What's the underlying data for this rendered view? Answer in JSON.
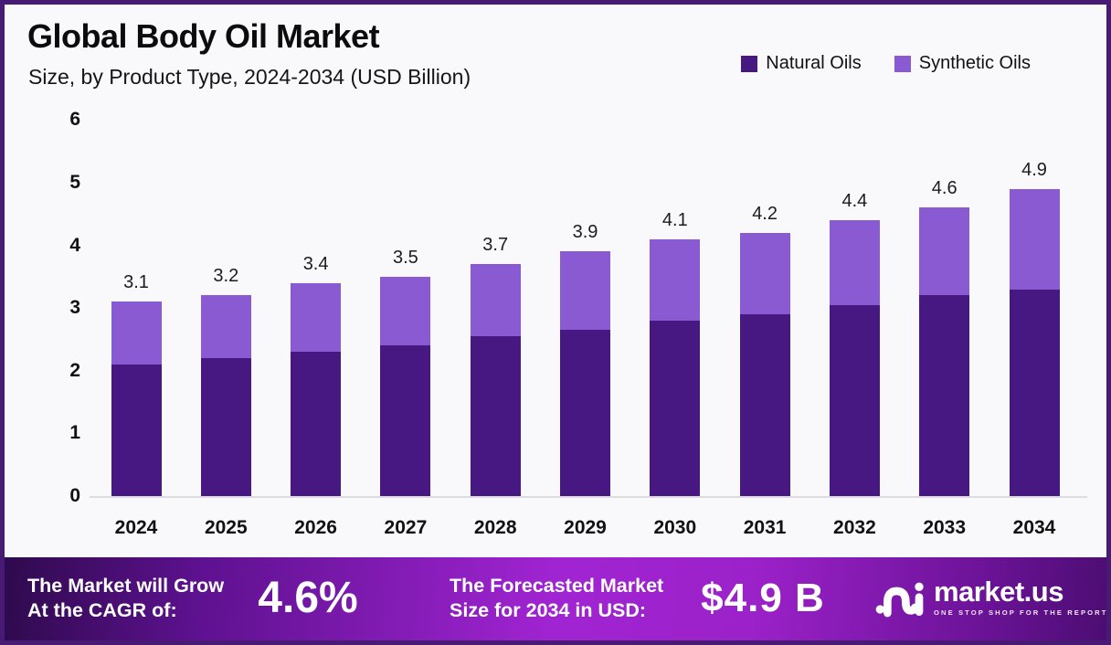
{
  "page": {
    "border_color": "#471a73",
    "background": "#f9f8fa"
  },
  "header": {
    "title": "Global Body Oil Market",
    "subtitle": "Size, by Product Type, 2024-2034 (USD Billion)"
  },
  "legend": {
    "items": [
      {
        "label": "Natural Oils",
        "color": "#471782"
      },
      {
        "label": "Synthetic Oils",
        "color": "#8a5ad2"
      }
    ]
  },
  "chart_data": {
    "type": "bar",
    "stacked": true,
    "title": "Global Body Oil Market",
    "subtitle": "Size, by Product Type, 2024-2034 (USD Billion)",
    "unit": "USD Billion",
    "categories": [
      "2024",
      "2025",
      "2026",
      "2027",
      "2028",
      "2029",
      "2030",
      "2031",
      "2032",
      "2033",
      "2034"
    ],
    "series": [
      {
        "name": "Natural Oils",
        "color": "#471782",
        "values": [
          2.1,
          2.2,
          2.3,
          2.4,
          2.55,
          2.65,
          2.8,
          2.9,
          3.05,
          3.2,
          3.3
        ]
      },
      {
        "name": "Synthetic Oils",
        "color": "#8a5ad2",
        "values": [
          1.0,
          1.0,
          1.1,
          1.1,
          1.15,
          1.25,
          1.3,
          1.3,
          1.35,
          1.4,
          1.6
        ]
      }
    ],
    "totals": [
      3.1,
      3.2,
      3.4,
      3.5,
      3.7,
      3.9,
      4.1,
      4.2,
      4.4,
      4.6,
      4.9
    ],
    "ylim": [
      0,
      6
    ],
    "y_ticks": [
      0,
      1,
      2,
      3,
      4,
      5,
      6
    ],
    "grid": false,
    "legend_position": "top-right",
    "bar_total_labels": true
  },
  "banner": {
    "cagr_label_line1": "The Market will Grow",
    "cagr_label_line2": "At the CAGR of:",
    "cagr_value": "4.6%",
    "forecast_label_line1": "The Forecasted Market",
    "forecast_label_line2": "Size for 2034 in USD:",
    "forecast_value": "$4.9 B",
    "logo": {
      "name": "market.us",
      "tagline": "ONE STOP SHOP FOR THE REPORTS"
    }
  }
}
